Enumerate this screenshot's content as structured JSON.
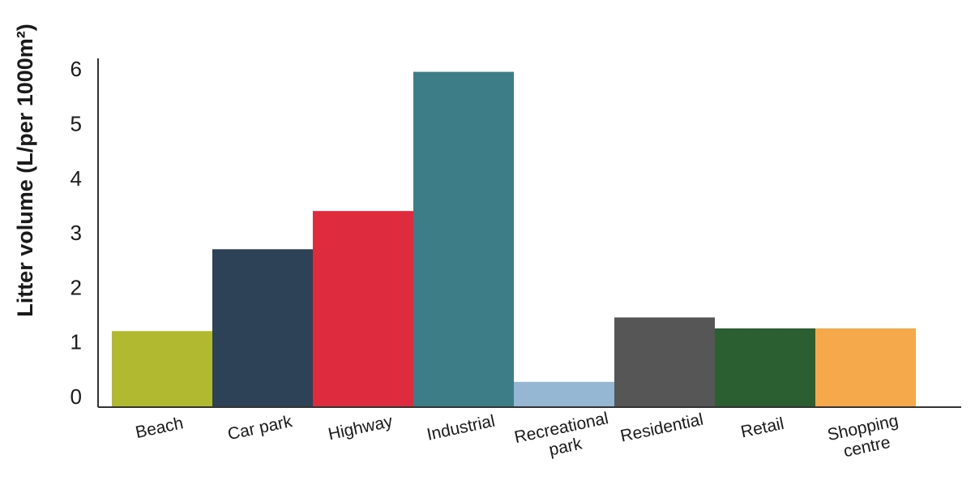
{
  "chart_data": {
    "type": "bar",
    "title": "",
    "xlabel": "",
    "ylabel": "Litter volume (L/per 1000m²)",
    "categories": [
      [
        "Beach"
      ],
      [
        "Car park"
      ],
      [
        "Highway"
      ],
      [
        "Industrial"
      ],
      [
        "Recreational",
        "park"
      ],
      [
        "Residential"
      ],
      [
        "Retail"
      ],
      [
        "Shopping",
        "centre"
      ]
    ],
    "values": [
      1.2,
      2.7,
      3.4,
      5.95,
      0.27,
      1.45,
      1.25,
      1.25
    ],
    "colors": [
      "#b0b92f",
      "#2d4257",
      "#de2c3e",
      "#3c7d87",
      "#95b7d3",
      "#565656",
      "#2b5e31",
      "#f5a94a"
    ],
    "yticks": [
      0,
      1,
      2,
      3,
      4,
      5,
      6
    ],
    "ylim": [
      -0.3,
      6.3
    ],
    "grid": false,
    "legend": "none"
  }
}
